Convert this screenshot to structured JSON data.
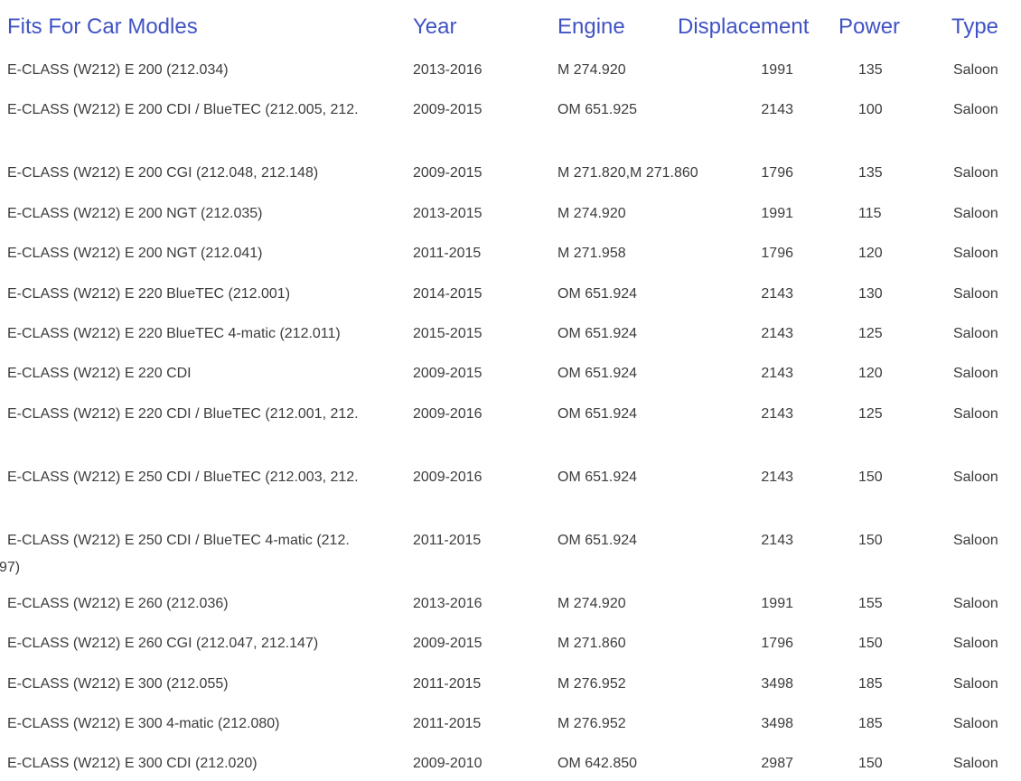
{
  "colors": {
    "accent_header_blue": "#4053c4",
    "body_text": "#3c3c3c",
    "background": "#ffffff"
  },
  "table": {
    "headers": {
      "model": "Fits For Car Modles",
      "year": "Year",
      "engine": "Engine",
      "displacement": "Displacement",
      "power": "Power",
      "type": "Type"
    },
    "rows": [
      {
        "model": "E-CLASS (W212) E 200 (212.034)",
        "model_line2": "",
        "year": "2013-2016",
        "engine": "M 274.920",
        "displacement": "1991",
        "power": "135",
        "type": "Saloon",
        "tall": false
      },
      {
        "model": "E-CLASS (W212) E 200 CDI / BlueTEC (212.005, 212.",
        "model_line2": "",
        "year": "2009-2015",
        "engine": "OM 651.925",
        "displacement": "2143",
        "power": "100",
        "type": "Saloon",
        "tall": true
      },
      {
        "model": "E-CLASS (W212) E 200 CGI (212.048, 212.148)",
        "model_line2": "",
        "year": "2009-2015",
        "engine": "M 271.820,M 271.860",
        "displacement": "1796",
        "power": "135",
        "type": "Saloon",
        "tall": false
      },
      {
        "model": "E-CLASS (W212) E 200 NGT (212.035)",
        "model_line2": "",
        "year": "2013-2015",
        "engine": "M 274.920",
        "displacement": "1991",
        "power": "115",
        "type": "Saloon",
        "tall": false
      },
      {
        "model": "E-CLASS (W212) E 200 NGT (212.041)",
        "model_line2": "",
        "year": "2011-2015",
        "engine": "M 271.958",
        "displacement": "1796",
        "power": "120",
        "type": "Saloon",
        "tall": false
      },
      {
        "model": "E-CLASS (W212) E 220 BlueTEC (212.001)",
        "model_line2": "",
        "year": "2014-2015",
        "engine": "OM 651.924",
        "displacement": "2143",
        "power": "130",
        "type": "Saloon",
        "tall": false
      },
      {
        "model": "E-CLASS (W212) E 220 BlueTEC 4-matic (212.011)",
        "model_line2": "",
        "year": "2015-2015",
        "engine": "OM 651.924",
        "displacement": "2143",
        "power": "125",
        "type": "Saloon",
        "tall": false
      },
      {
        "model": "E-CLASS (W212) E 220 CDI",
        "model_line2": "",
        "year": "2009-2015",
        "engine": "OM 651.924",
        "displacement": "2143",
        "power": "120",
        "type": "Saloon",
        "tall": false
      },
      {
        "model": "E-CLASS (W212) E 220 CDI / BlueTEC (212.001, 212.",
        "model_line2": "",
        "year": "2009-2016",
        "engine": "OM 651.924",
        "displacement": "2143",
        "power": "125",
        "type": "Saloon",
        "tall": true
      },
      {
        "model": "E-CLASS (W212) E 250 CDI / BlueTEC (212.003, 212.",
        "model_line2": "",
        "year": "2009-2016",
        "engine": "OM 651.924",
        "displacement": "2143",
        "power": "150",
        "type": "Saloon",
        "tall": true
      },
      {
        "model": "E-CLASS (W212) E 250 CDI / BlueTEC 4-matic (212.",
        "model_line2": "97)",
        "year": "2011-2015",
        "engine": "OM 651.924",
        "displacement": "2143",
        "power": "150",
        "type": "Saloon",
        "tall": true
      },
      {
        "model": "E-CLASS (W212) E 260 (212.036)",
        "model_line2": "",
        "year": "2013-2016",
        "engine": "M 274.920",
        "displacement": "1991",
        "power": "155",
        "type": "Saloon",
        "tall": false
      },
      {
        "model": "E-CLASS (W212) E 260 CGI (212.047, 212.147)",
        "model_line2": "",
        "year": "2009-2015",
        "engine": "M 271.860",
        "displacement": "1796",
        "power": "150",
        "type": "Saloon",
        "tall": false
      },
      {
        "model": "E-CLASS (W212) E 300 (212.055)",
        "model_line2": "",
        "year": "2011-2015",
        "engine": "M 276.952",
        "displacement": "3498",
        "power": "185",
        "type": "Saloon",
        "tall": false
      },
      {
        "model": "E-CLASS (W212) E 300 4-matic (212.080)",
        "model_line2": "",
        "year": "2011-2015",
        "engine": "M 276.952",
        "displacement": "3498",
        "power": "185",
        "type": "Saloon",
        "tall": false
      },
      {
        "model": "E-CLASS (W212) E 300 CDI (212.020)",
        "model_line2": "",
        "year": "2009-2010",
        "engine": "OM 642.850",
        "displacement": "2987",
        "power": "150",
        "type": "Saloon",
        "tall": false
      }
    ]
  }
}
